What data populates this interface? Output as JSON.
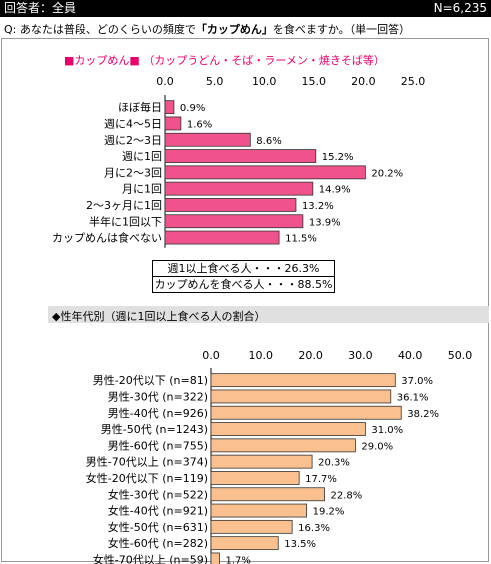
{
  "header": {
    "left": "回答者：全員",
    "right": "N=6,235"
  },
  "question": {
    "prefix": "Q:  あなたは普段、どのくらいの頻度で",
    "highlight": "「カップめん」",
    "suffix": "を食べますか。（単一回答）"
  },
  "section1": {
    "title": "■カップめん■ （カップうどん・そば・ラーメン・焼きそば等）"
  },
  "summary": {
    "line1": "週1以上食べる人・・・26.3%",
    "line2": "カップめんを食べる人・・・88.5%"
  },
  "section2": {
    "title": "◆性年代別（週に1回以上食べる人の割合）"
  },
  "colors": {
    "chart1_bar": "#f0538b",
    "chart2_bar": "#fbc08f",
    "bar_stroke": "#333333"
  },
  "chart_data": [
    {
      "type": "bar",
      "orientation": "horizontal",
      "xlim": [
        0,
        25
      ],
      "ticks": [
        "0.0",
        "5.0",
        "10.0",
        "15.0",
        "20.0",
        "25.0"
      ],
      "categories": [
        "ほぼ毎日",
        "週に4～5日",
        "週に2～3日",
        "週に1回",
        "月に2～3回",
        "月に1回",
        "2～3ヶ月に1回",
        "半年に1回以下",
        "カップめんは食べない"
      ],
      "values": [
        0.9,
        1.6,
        8.6,
        15.2,
        20.2,
        14.9,
        13.2,
        13.9,
        11.5
      ],
      "labels": [
        "0.9%",
        "1.6%",
        "8.6%",
        "15.2%",
        "20.2%",
        "14.9%",
        "13.2%",
        "13.9%",
        "11.5%"
      ]
    },
    {
      "type": "bar",
      "orientation": "horizontal",
      "xlim": [
        0,
        50
      ],
      "ticks": [
        "0.0",
        "10.0",
        "20.0",
        "30.0",
        "40.0",
        "50.0"
      ],
      "categories": [
        "男性-20代以下 (n=81)",
        "男性-30代 (n=322)",
        "男性-40代 (n=926)",
        "男性-50代 (n=1243)",
        "男性-60代 (n=755)",
        "男性-70代以上 (n=374)",
        "女性-20代以下 (n=119)",
        "女性-30代 (n=522)",
        "女性-40代 (n=921)",
        "女性-50代 (n=631)",
        "女性-60代 (n=282)",
        "女性-70代以上 (n=59)"
      ],
      "values": [
        37.0,
        36.1,
        38.2,
        31.0,
        29.0,
        20.3,
        17.7,
        22.8,
        19.2,
        16.3,
        13.5,
        1.7
      ],
      "labels": [
        "37.0%",
        "36.1%",
        "38.2%",
        "31.0%",
        "29.0%",
        "20.3%",
        "17.7%",
        "22.8%",
        "19.2%",
        "16.3%",
        "13.5%",
        "1.7%"
      ]
    }
  ]
}
